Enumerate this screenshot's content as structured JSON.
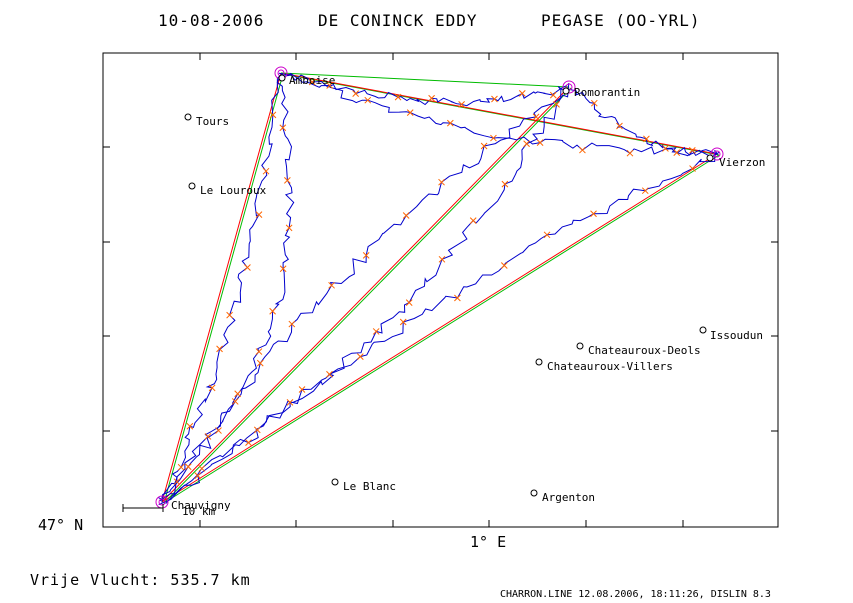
{
  "header": {
    "date": "10-08-2006",
    "pilot": "DE CONINCK EDDY",
    "glider": "PEGASE (OO-YRL)"
  },
  "axes": {
    "lat_label": "47° N",
    "lon_label": "1° E"
  },
  "scale_label": "10 km",
  "cities": [
    {
      "name": "Amboise"
    },
    {
      "name": "Romorantin"
    },
    {
      "name": "Tours"
    },
    {
      "name": "Vierzon"
    },
    {
      "name": "Le Louroux"
    },
    {
      "name": "Issoudun"
    },
    {
      "name": "Chateauroux-Deols"
    },
    {
      "name": "Chateauroux-Villers"
    },
    {
      "name": "Le Blanc"
    },
    {
      "name": "Chauvigny"
    },
    {
      "name": "Argenton"
    }
  ],
  "flight": {
    "distance_label": "Vrije Vlucht:  535.7 km",
    "track_color": "#0000cc",
    "course_color": "#ff0000",
    "alt_course_color": "#00bb00",
    "fix_color": "#ff6600",
    "turnpoint_color": "#cc00cc"
  },
  "footer": "CHARRON.LINE 12.08.2006, 18:11:26, DISLIN 8.3"
}
